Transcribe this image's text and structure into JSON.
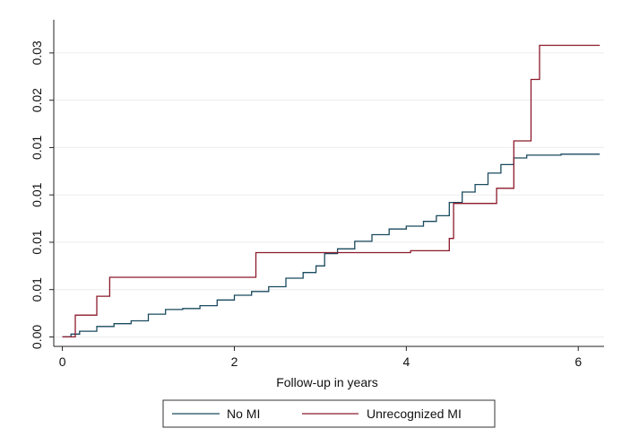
{
  "chart_data": {
    "type": "line",
    "title": "",
    "xlabel": "Follow-up in years",
    "ylabel": "",
    "xlim": [
      -0.1,
      6.3
    ],
    "ylim": [
      -0.001,
      0.0335
    ],
    "x_ticks": [
      0,
      2,
      4,
      6
    ],
    "x_tick_labels": [
      "0",
      "2",
      "4",
      "6"
    ],
    "y_ticks": [
      0,
      0.005,
      0.01,
      0.015,
      0.02,
      0.025,
      0.03
    ],
    "y_tick_labels": [
      "0.00",
      "0.01",
      "0.01",
      "0.01",
      "0.01",
      "0.02",
      "0.03"
    ],
    "grid": "horizontal",
    "legend_position": "bottom",
    "colors": {
      "No MI": "#1a4a5e",
      "Unrecognized MI": "#8b1a2b"
    },
    "series": [
      {
        "name": "No MI",
        "step": true,
        "x": [
          0.0,
          0.1,
          0.2,
          0.4,
          0.6,
          0.8,
          1.0,
          1.2,
          1.4,
          1.6,
          1.8,
          2.0,
          2.2,
          2.4,
          2.6,
          2.8,
          2.95,
          3.05,
          3.2,
          3.4,
          3.6,
          3.8,
          4.0,
          4.2,
          4.35,
          4.5,
          4.65,
          4.8,
          4.95,
          5.1,
          5.25,
          5.4,
          5.6,
          5.8,
          6.0,
          6.25
        ],
        "y": [
          0.0,
          0.0003,
          0.0006,
          0.0011,
          0.0014,
          0.0017,
          0.0024,
          0.0029,
          0.003,
          0.0033,
          0.0039,
          0.0044,
          0.0048,
          0.0053,
          0.0062,
          0.0068,
          0.0075,
          0.0088,
          0.0093,
          0.0101,
          0.0108,
          0.0114,
          0.0117,
          0.0122,
          0.0128,
          0.0142,
          0.0153,
          0.0161,
          0.0173,
          0.0182,
          0.0189,
          0.0192,
          0.0192,
          0.0193,
          0.0193,
          0.0193
        ]
      },
      {
        "name": "Unrecognized MI",
        "step": true,
        "x": [
          0.0,
          0.15,
          0.4,
          0.55,
          2.25,
          3.2,
          4.05,
          4.5,
          4.55,
          5.05,
          5.25,
          5.45,
          5.55,
          6.25
        ],
        "y": [
          0.0,
          0.0023,
          0.0043,
          0.0063,
          0.0089,
          0.0089,
          0.0091,
          0.0104,
          0.0141,
          0.0157,
          0.0207,
          0.0272,
          0.0308,
          0.0308
        ]
      }
    ]
  }
}
